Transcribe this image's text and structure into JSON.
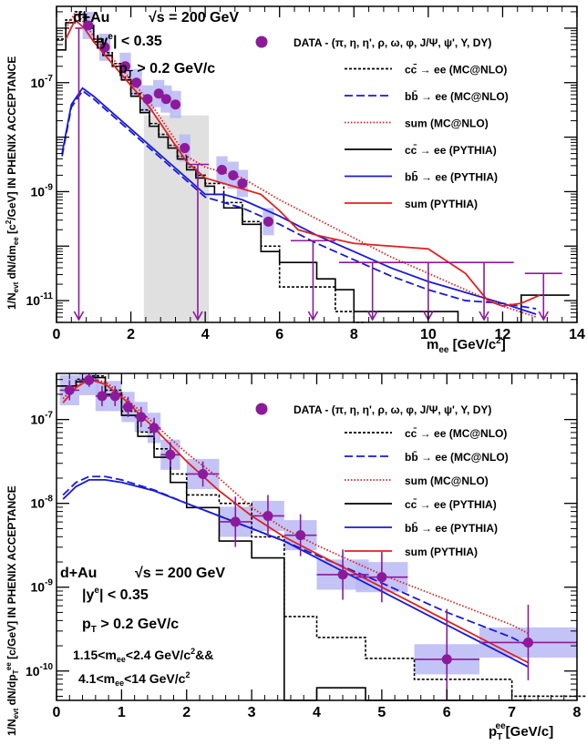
{
  "chart_data": [
    {
      "type": "line",
      "xlabel": "m",
      "xlabel_sub": "ee",
      "xlabel_unit": "[GeV/c",
      "xlabel_unit_end": "]",
      "ylabel": "1/N",
      "ylabel_sub1": "evt",
      "ylabel_mid": " dN/dm",
      "ylabel_sub2": "ee",
      "ylabel_unit": " [c",
      "ylabel_unit_end": "/GeV] IN PHENIX ACCEPTANCE",
      "xlim": [
        0,
        14
      ],
      "ylim_log10": [
        -11.4,
        -5.6
      ],
      "x_ticks": [
        "0",
        "2",
        "4",
        "6",
        "8",
        "10",
        "12",
        "14"
      ],
      "y_ticks": [
        {
          "base": "10",
          "exp": "-7",
          "at": -7
        },
        {
          "base": "10",
          "exp": "-9",
          "at": -9
        },
        {
          "base": "10",
          "exp": "-11",
          "at": -11
        }
      ],
      "annotations": {
        "collision": "d+Au",
        "energy": "√s = 200 GeV",
        "rapidity": "|y",
        "rapidity_sup": "e",
        "rapidity_end": "| < 0.35",
        "pt": "p",
        "pt_sub": "T",
        "pt_end": " > 0.2 GeV/c"
      },
      "legend": {
        "data_label": "DATA - (π, η, η', ρ, ω, φ, J/Ψ, ψ', Υ, DY)",
        "entries": [
          {
            "label": "cc̄ → ee (MC@NLO)",
            "style": "dotted",
            "color": "#000000"
          },
          {
            "label": "bb̄ → ee (MC@NLO)",
            "style": "dashed",
            "color": "#1a1ad6"
          },
          {
            "label": "sum (MC@NLO)",
            "style": "dotted",
            "color": "#e02020"
          },
          {
            "label": "cc̄ → ee (PYTHIA)",
            "style": "solid",
            "color": "#000000"
          },
          {
            "label": "bb̄ → ee (PYTHIA)",
            "style": "solid",
            "color": "#1a1ad6"
          },
          {
            "label": "sum (PYTHIA)",
            "style": "solid",
            "color": "#e02020"
          }
        ]
      },
      "excluded_band": [
        2.35,
        4.1
      ],
      "data_points": [
        {
          "x": 0.85,
          "y": -5.95
        },
        {
          "x": 1.3,
          "y": -6.35
        },
        {
          "x": 1.85,
          "y": -6.7
        },
        {
          "x": 2.15,
          "y": -7.0
        },
        {
          "x": 2.45,
          "y": -7.3
        },
        {
          "x": 2.75,
          "y": -7.2
        },
        {
          "x": 2.95,
          "y": -7.3
        },
        {
          "x": 3.2,
          "y": -7.4
        },
        {
          "x": 3.45,
          "y": -8.2
        },
        {
          "x": 4.45,
          "y": -8.6
        },
        {
          "x": 4.75,
          "y": -8.7
        },
        {
          "x": 5.0,
          "y": -8.85
        },
        {
          "x": 5.7,
          "y": -9.55
        }
      ],
      "upper_limits": [
        {
          "x": 0.6,
          "y": -6.0,
          "xw": 0.1
        },
        {
          "x": 3.8,
          "y": -8.5,
          "xw": 0.3
        },
        {
          "x": 6.9,
          "y": -9.9,
          "xw": 0.6
        },
        {
          "x": 8.5,
          "y": -10.3,
          "xw": 0.9
        },
        {
          "x": 10.0,
          "y": -10.3,
          "xw": 0.8
        },
        {
          "x": 11.5,
          "y": -10.3,
          "xw": 0.8
        },
        {
          "x": 13.1,
          "y": -10.5,
          "xw": 0.5
        }
      ],
      "series": [
        {
          "name": "cc̄ → ee (PYTHIA)",
          "kind": "step",
          "color": "#000000",
          "dash": "",
          "x": [
            0,
            0.25,
            0.5,
            0.75,
            1.0,
            1.25,
            1.5,
            1.75,
            2.0,
            2.25,
            2.5,
            2.75,
            3.0,
            3.25,
            3.5,
            3.75,
            4.0,
            4.25,
            4.5,
            5.0,
            5.5,
            6.0,
            6.5,
            7.0,
            7.5,
            8.0,
            10.8,
            12.5,
            13.5
          ],
          "y": [
            -6.4,
            -5.9,
            -5.75,
            -6.0,
            -6.25,
            -6.5,
            -6.7,
            -6.95,
            -7.25,
            -7.55,
            -7.8,
            -8.0,
            -8.2,
            -8.4,
            -8.6,
            -8.75,
            -8.9,
            -9.05,
            -9.3,
            -9.6,
            -10.1,
            -10.3,
            -10.3,
            -10.6,
            -10.8,
            -11.2,
            -11.4,
            -10.9,
            -10.9
          ]
        },
        {
          "name": "cc̄ → ee (MC@NLO)",
          "kind": "step",
          "color": "#000000",
          "dash": "3,2",
          "x": [
            0,
            0.25,
            0.5,
            0.75,
            1.0,
            1.25,
            1.5,
            1.75,
            2.0,
            2.25,
            2.5,
            2.75,
            3.0,
            3.25,
            3.5,
            3.75,
            4.0,
            4.5,
            5.0,
            5.5,
            6.0,
            7.5,
            8.0
          ],
          "y": [
            -6.2,
            -5.85,
            -5.7,
            -5.95,
            -6.2,
            -6.45,
            -6.65,
            -6.9,
            -7.2,
            -7.5,
            -7.75,
            -7.95,
            -8.15,
            -8.35,
            -8.55,
            -8.7,
            -8.85,
            -9.2,
            -9.55,
            -10.0,
            -10.75,
            -11.2,
            -11.4
          ]
        },
        {
          "name": "bb̄ → ee (PYTHIA)",
          "kind": "curve",
          "color": "#1a1ad6",
          "dash": "",
          "x": [
            0.15,
            0.4,
            0.7,
            1.0,
            1.5,
            2.0,
            2.5,
            3.0,
            3.5,
            4.0,
            4.5,
            5.0,
            6.0,
            7.0,
            8.0,
            9.0,
            10.0,
            11.0,
            12.0,
            12.9
          ],
          "y": [
            -8.3,
            -7.4,
            -7.1,
            -7.25,
            -7.55,
            -7.85,
            -8.15,
            -8.45,
            -8.75,
            -9.05,
            -9.05,
            -9.15,
            -9.45,
            -9.8,
            -10.1,
            -10.4,
            -10.65,
            -10.85,
            -11.05,
            -11.25
          ]
        },
        {
          "name": "bb̄ → ee (MC@NLO)",
          "kind": "curve",
          "color": "#1a1ad6",
          "dash": "9,4",
          "x": [
            0.15,
            0.4,
            0.7,
            1.0,
            1.5,
            2.0,
            2.5,
            3.0,
            3.5,
            4.0,
            4.5,
            5.0,
            6.0,
            7.0,
            8.0,
            9.0,
            10.0,
            11.0,
            12.0,
            12.9
          ],
          "y": [
            -8.35,
            -7.45,
            -7.15,
            -7.3,
            -7.6,
            -7.9,
            -8.2,
            -8.5,
            -8.8,
            -9.1,
            -9.2,
            -9.3,
            -9.6,
            -9.95,
            -10.25,
            -10.55,
            -10.8,
            -11.0,
            -11.05,
            -11.15
          ]
        },
        {
          "name": "sum (MC@NLO)",
          "kind": "curve",
          "color": "#e02020",
          "dash": "1.5,2",
          "x": [
            0.25,
            0.5,
            0.75,
            1.0,
            1.5,
            2.0,
            2.5,
            3.0,
            3.5,
            4.0,
            4.5,
            5.0,
            5.5,
            6.0,
            7.0,
            8.0,
            9.0,
            10.0,
            11.0,
            12.0,
            12.9
          ],
          "y": [
            -6.0,
            -5.72,
            -5.9,
            -6.15,
            -6.55,
            -6.95,
            -7.35,
            -7.85,
            -8.35,
            -8.55,
            -8.65,
            -8.75,
            -8.95,
            -9.15,
            -9.5,
            -9.85,
            -10.2,
            -10.5,
            -10.8,
            -11.1,
            -11.3
          ]
        },
        {
          "name": "sum (PYTHIA)",
          "kind": "curve",
          "color": "#e02020",
          "dash": "",
          "x": [
            0.25,
            0.5,
            0.75,
            1.0,
            1.5,
            2.0,
            2.5,
            3.0,
            3.5,
            4.0,
            4.5,
            5.0,
            5.5,
            6.0,
            6.5,
            7.0,
            8.0,
            9.0,
            10.0,
            11.0,
            11.6,
            12.0,
            12.5,
            13.0
          ],
          "y": [
            -6.2,
            -5.85,
            -6.0,
            -6.25,
            -6.65,
            -7.05,
            -7.45,
            -7.95,
            -8.45,
            -8.75,
            -8.85,
            -8.95,
            -9.05,
            -9.35,
            -9.7,
            -9.8,
            -9.95,
            -10.0,
            -10.05,
            -10.5,
            -11.0,
            -11.1,
            -11.05,
            -10.9
          ]
        }
      ]
    },
    {
      "type": "line",
      "xlabel": "p",
      "xlabel_sub": "T",
      "xlabel_sup": "ee",
      "xlabel_unit": "[GeV/c]",
      "ylabel": "1/N",
      "ylabel_sub1": "evt",
      "ylabel_mid": " dN/dp",
      "ylabel_sub2": "T",
      "ylabel_sup2": "ee",
      "ylabel_unit": " [c/GeV] IN PHENIX ACCEPTANCE",
      "xlim": [
        0,
        8
      ],
      "ylim_log10": [
        -10.35,
        -6.45
      ],
      "x_ticks": [
        "0",
        "1",
        "2",
        "3",
        "4",
        "5",
        "6",
        "7",
        "8"
      ],
      "y_ticks": [
        {
          "base": "10",
          "exp": "-7",
          "at": -7
        },
        {
          "base": "10",
          "exp": "-8",
          "at": -8
        },
        {
          "base": "10",
          "exp": "-9",
          "at": -9
        },
        {
          "base": "10",
          "exp": "-10",
          "at": -10
        }
      ],
      "annotations": {
        "collision": "d+Au",
        "energy": "√s = 200 GeV",
        "rapidity": "|y",
        "rapidity_sup": "e",
        "rapidity_end": "| < 0.35",
        "pt": "p",
        "pt_sub": "T",
        "pt_end": " > 0.2 GeV/c",
        "mass_cut1": "1.15<m",
        "mass_cut1_sub": "ee",
        "mass_cut1_end": "<2.4 GeV/c",
        "mass_cut1_sup": "2",
        "mass_cut1_tail": "&&",
        "mass_cut2": "4.1<m",
        "mass_cut2_sub": "ee",
        "mass_cut2_end": "<14 GeV/c",
        "mass_cut2_sup": "2"
      },
      "legend": {
        "data_label": "DATA - (π, η, η', ρ, ω, φ, J/Ψ, ψ', Υ, DY)",
        "entries": [
          {
            "label": "cc̄ → ee (MC@NLO)",
            "style": "dotted",
            "color": "#000000"
          },
          {
            "label": "bb̄ → ee (MC@NLO)",
            "style": "dashed",
            "color": "#1a1ad6"
          },
          {
            "label": "sum (MC@NLO)",
            "style": "dotted",
            "color": "#e02020"
          },
          {
            "label": "cc̄ → ee (PYTHIA)",
            "style": "solid",
            "color": "#000000"
          },
          {
            "label": "bb̄ → ee (PYTHIA)",
            "style": "solid",
            "color": "#1a1ad6"
          },
          {
            "label": "sum (PYTHIA)",
            "style": "solid",
            "color": "#e02020"
          }
        ]
      },
      "data_points": [
        {
          "x": 0.2,
          "y": -6.65,
          "xw": 0.15,
          "yerr": 0.12
        },
        {
          "x": 0.5,
          "y": -6.53,
          "xw": 0.15,
          "yerr": 0.08
        },
        {
          "x": 0.7,
          "y": -6.72,
          "xw": 0.1,
          "yerr": 0.12
        },
        {
          "x": 0.9,
          "y": -6.72,
          "xw": 0.1,
          "yerr": 0.12
        },
        {
          "x": 1.1,
          "y": -6.85,
          "xw": 0.1,
          "yerr": 0.12
        },
        {
          "x": 1.3,
          "y": -6.97,
          "xw": 0.1,
          "yerr": 0.12
        },
        {
          "x": 1.5,
          "y": -7.1,
          "xw": 0.1,
          "yerr": 0.12
        },
        {
          "x": 1.75,
          "y": -7.42,
          "xw": 0.15,
          "yerr": 0.15
        },
        {
          "x": 2.25,
          "y": -7.65,
          "xw": 0.25,
          "yerr": 0.15
        },
        {
          "x": 2.75,
          "y": -8.22,
          "xw": 0.25,
          "yerr": 0.3
        },
        {
          "x": 3.25,
          "y": -8.15,
          "xw": 0.25,
          "yerr": 0.25
        },
        {
          "x": 3.75,
          "y": -8.38,
          "xw": 0.25,
          "yerr": 0.25
        },
        {
          "x": 4.4,
          "y": -8.85,
          "xw": 0.4,
          "yerr": 0.3
        },
        {
          "x": 5.0,
          "y": -8.88,
          "xw": 0.4,
          "yerr": 0.3
        },
        {
          "x": 6.0,
          "y": -9.86,
          "xw": 0.5,
          "yerr": 0.6
        },
        {
          "x": 7.25,
          "y": -9.66,
          "xw": 0.75,
          "yerr": 0.45
        }
      ],
      "series": [
        {
          "name": "cc̄ → ee (PYTHIA)",
          "kind": "step",
          "color": "#000000",
          "dash": "",
          "x": [
            0,
            0.3,
            0.5,
            0.75,
            1.0,
            1.25,
            1.5,
            1.75,
            2.0,
            2.5,
            3.0,
            3.5,
            4.0,
            4.75,
            5.5,
            6.5,
            7.0
          ],
          "y": [
            -6.6,
            -6.55,
            -6.5,
            -6.7,
            -6.95,
            -7.2,
            -7.45,
            -7.75,
            -8.05,
            -8.45,
            -8.65,
            -10.35,
            -10.2,
            -10.35,
            -10.35,
            -10.35,
            -10.35
          ]
        },
        {
          "name": "cc̄ → ee (MC@NLO)",
          "kind": "step",
          "color": "#000000",
          "dash": "3,2",
          "x": [
            0,
            0.3,
            0.5,
            0.75,
            1.0,
            1.25,
            1.5,
            1.75,
            2.0,
            2.5,
            3.0,
            3.5,
            4.0,
            4.75,
            5.5,
            6.5,
            7.0,
            8.0
          ],
          "y": [
            -6.6,
            -6.52,
            -6.48,
            -6.65,
            -6.9,
            -7.15,
            -7.35,
            -7.65,
            -7.9,
            -8.0,
            -8.4,
            -9.35,
            -9.6,
            -9.85,
            -10.1,
            -10.1,
            -10.3,
            -10.3
          ]
        },
        {
          "name": "bb̄ → ee (PYTHIA)",
          "kind": "curve",
          "color": "#1a1ad6",
          "dash": "",
          "x": [
            0.1,
            0.3,
            0.5,
            0.75,
            1.0,
            1.25,
            1.5,
            2.0,
            2.5,
            3.0,
            3.5,
            4.0,
            5.0,
            6.0,
            7.0,
            7.25
          ],
          "y": [
            -7.95,
            -7.8,
            -7.72,
            -7.72,
            -7.75,
            -7.8,
            -7.85,
            -8.0,
            -8.15,
            -8.3,
            -8.45,
            -8.65,
            -9.05,
            -9.45,
            -9.85,
            -9.95
          ]
        },
        {
          "name": "bb̄ → ee (MC@NLO)",
          "kind": "curve",
          "color": "#1a1ad6",
          "dash": "9,4",
          "x": [
            0.1,
            0.3,
            0.5,
            0.75,
            1.0,
            1.25,
            1.5,
            2.0,
            2.5,
            3.0,
            3.5,
            4.0,
            5.0,
            6.0,
            7.0,
            7.25
          ],
          "y": [
            -7.9,
            -7.75,
            -7.68,
            -7.68,
            -7.72,
            -7.78,
            -7.84,
            -8.0,
            -8.15,
            -8.3,
            -8.45,
            -8.62,
            -8.95,
            -9.3,
            -9.6,
            -9.7
          ]
        },
        {
          "name": "sum (MC@NLO)",
          "kind": "curve",
          "color": "#e02020",
          "dash": "1.5,2",
          "x": [
            0.1,
            0.3,
            0.5,
            0.75,
            1.0,
            1.5,
            2.0,
            2.5,
            3.0,
            3.5,
            4.0,
            5.0,
            6.0,
            7.0,
            7.25
          ],
          "y": [
            -6.75,
            -6.6,
            -6.52,
            -6.55,
            -6.7,
            -7.05,
            -7.4,
            -7.7,
            -8.05,
            -8.3,
            -8.5,
            -8.85,
            -9.15,
            -9.45,
            -9.55
          ]
        },
        {
          "name": "sum (PYTHIA)",
          "kind": "curve",
          "color": "#e02020",
          "dash": "",
          "x": [
            0.1,
            0.3,
            0.5,
            0.75,
            1.0,
            1.5,
            2.0,
            2.5,
            3.0,
            3.5,
            4.0,
            5.0,
            6.0,
            7.0,
            7.25
          ],
          "y": [
            -6.8,
            -6.62,
            -6.52,
            -6.58,
            -6.73,
            -7.1,
            -7.5,
            -7.85,
            -8.15,
            -8.4,
            -8.6,
            -9.0,
            -9.4,
            -9.8,
            -9.9
          ]
        }
      ]
    }
  ]
}
